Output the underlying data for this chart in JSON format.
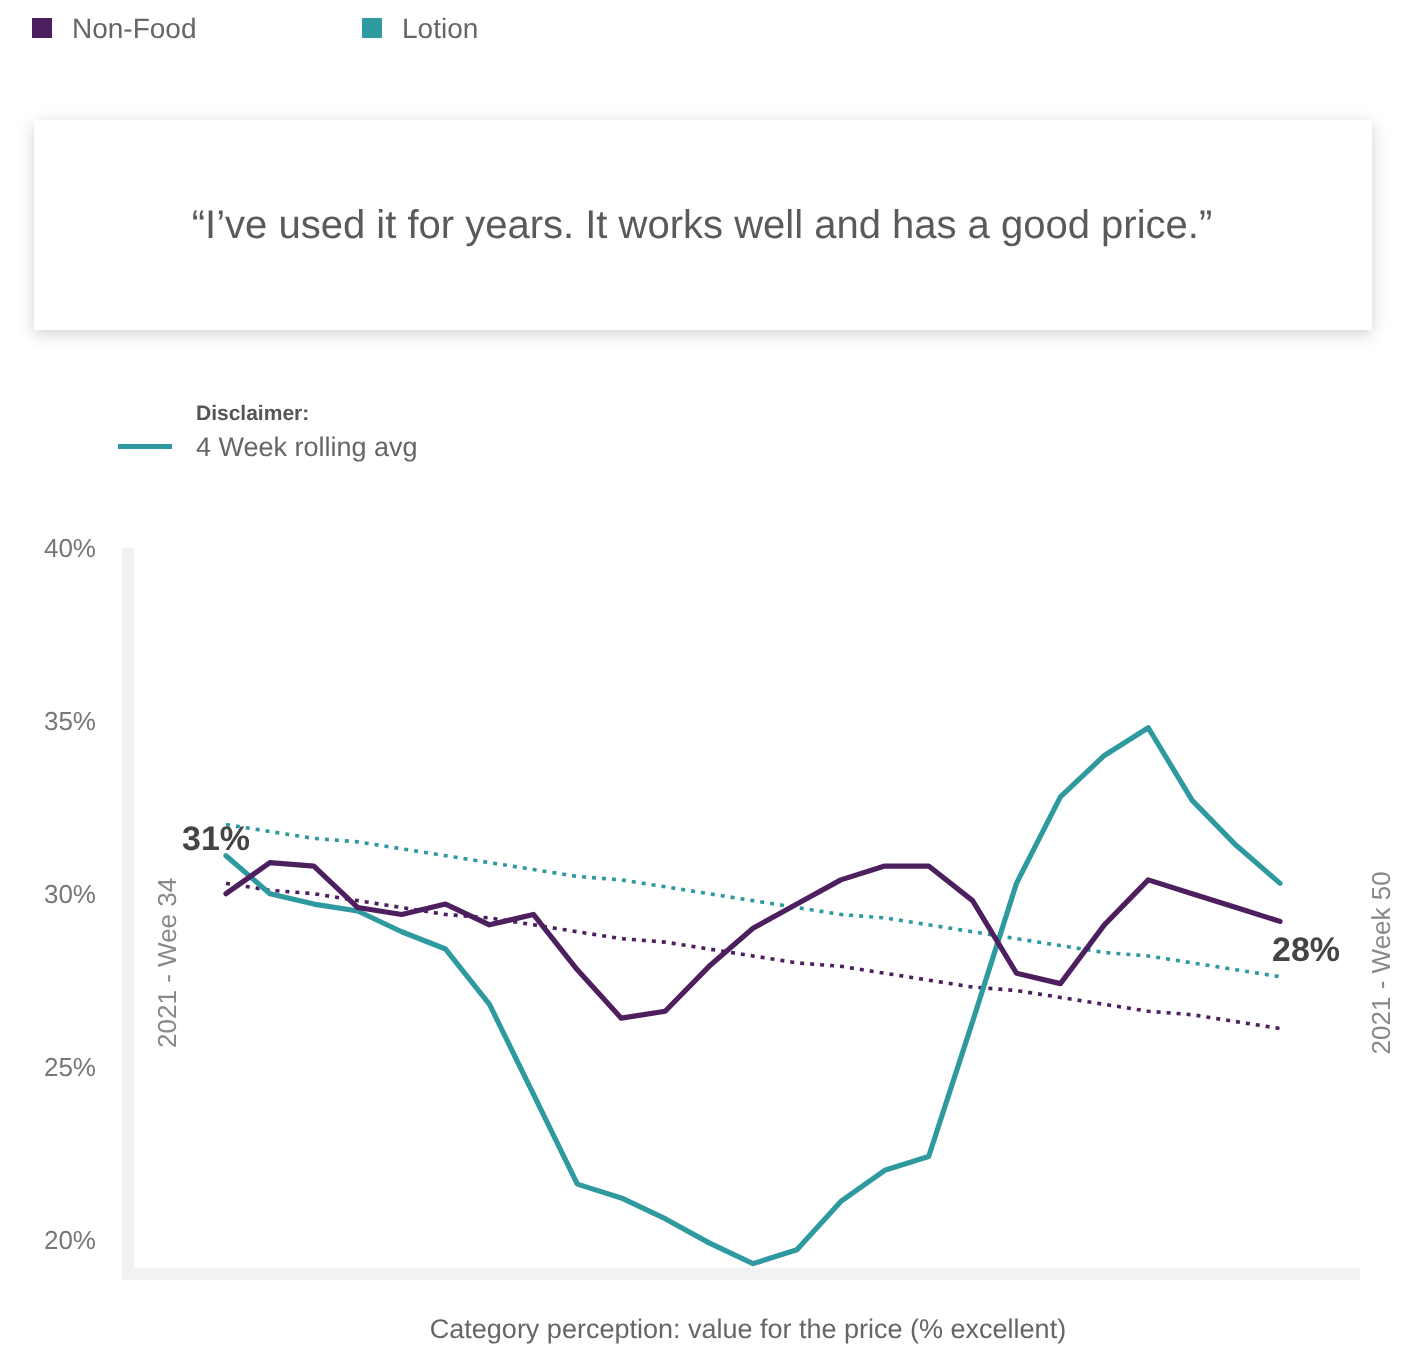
{
  "chart_data": {
    "type": "line",
    "xlabel": "Category perception: value for the price (% excellent)",
    "categories": [
      null,
      null,
      null,
      null,
      null,
      null,
      null,
      null,
      null,
      null,
      null,
      null,
      null,
      null,
      null,
      null,
      null,
      null,
      null,
      null,
      null,
      null,
      null,
      null,
      null
    ],
    "series": [
      {
        "name": "Non-Food",
        "color": "#4e1f5e",
        "values": [
          30.0,
          30.9,
          30.8,
          29.6,
          29.4,
          29.7,
          29.1,
          29.4,
          27.8,
          26.4,
          26.6,
          27.9,
          29.0,
          29.7,
          30.4,
          30.8,
          30.8,
          29.8,
          27.7,
          27.4,
          29.1,
          30.4,
          30.0,
          29.6,
          29.2
        ]
      },
      {
        "name": "Lotion",
        "color": "#2e9aa0",
        "values": [
          31.1,
          30.0,
          29.7,
          29.5,
          28.9,
          28.4,
          26.8,
          24.2,
          21.6,
          21.2,
          20.6,
          19.9,
          19.3,
          19.7,
          21.1,
          22.0,
          22.4,
          26.3,
          30.3,
          32.8,
          34.0,
          34.8,
          32.7,
          31.4,
          30.3
        ],
        "value_labels": [
          "31%",
          null,
          null,
          null,
          null,
          null,
          null,
          null,
          null,
          null,
          null,
          null,
          null,
          null,
          null,
          null,
          null,
          null,
          null,
          null,
          null,
          null,
          null,
          null,
          null
        ]
      },
      {
        "color": "#2e9aa0",
        "line_style": "dotted",
        "values": [
          32.0,
          31.8,
          31.6,
          31.5,
          31.3,
          31.1,
          30.9,
          30.7,
          30.5,
          30.4,
          30.2,
          30.0,
          29.8,
          29.6,
          29.4,
          29.3,
          29.1,
          28.9,
          28.7,
          28.5,
          28.3,
          28.2,
          28.0,
          27.8,
          27.6
        ],
        "value_labels": [
          null,
          null,
          null,
          null,
          null,
          null,
          null,
          null,
          null,
          null,
          null,
          null,
          null,
          null,
          null,
          null,
          null,
          null,
          null,
          null,
          null,
          null,
          null,
          null,
          "28%"
        ]
      },
      {
        "color": "#4e1f5e",
        "line_style": "dotted",
        "values": [
          30.3,
          30.1,
          30.0,
          29.8,
          29.6,
          29.4,
          29.3,
          29.1,
          28.9,
          28.7,
          28.6,
          28.4,
          28.2,
          28.0,
          27.9,
          27.7,
          27.5,
          27.3,
          27.2,
          27.0,
          26.8,
          26.6,
          26.5,
          26.3,
          26.1
        ]
      }
    ],
    "ylim": [
      19,
      40
    ],
    "yticks": [
      {
        "value": 20,
        "label": "20%"
      },
      {
        "value": 25,
        "label": "25%"
      },
      {
        "value": 30,
        "label": "30%"
      },
      {
        "value": 35,
        "label": "35%"
      },
      {
        "value": 40,
        "label": "40%"
      }
    ],
    "grid": false,
    "legend": "top left",
    "line_style": "solid",
    "marker": "none",
    "annotations": [
      "“I’ve used it for years. It works well and has a good price.”",
      "Disclaimer:",
      "4 Week rolling avg",
      "2021 - Wee 34",
      "2021 - Week 50"
    ]
  }
}
